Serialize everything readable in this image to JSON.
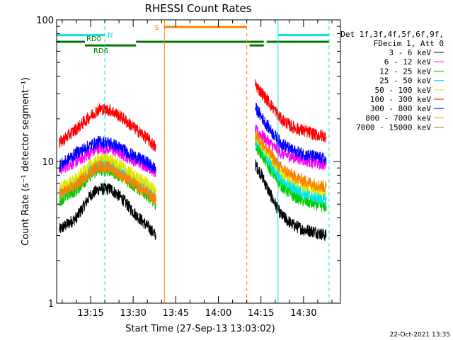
{
  "chart_data": {
    "type": "line",
    "title": "RHESSI Count Rates",
    "xlabel": "Start Time (27-Sep-13 13:03:02)",
    "ylabel": "Count Rate (s⁻¹ detector segment⁻¹)",
    "yscale": "log",
    "ylim": [
      1,
      100
    ],
    "xlim": [
      "13:03:02",
      "14:43:00"
    ],
    "x_ticks": [
      "13:15",
      "13:30",
      "13:45",
      "14:00",
      "14:15",
      "14:30"
    ],
    "y_ticks": [
      "1",
      "10",
      "100"
    ],
    "legend_header": [
      "Det 1f,3f,4f,5f,6f,9f,",
      "FDecim 1, Att 0"
    ],
    "legend_position": "right",
    "footer_date": "22-Oct-2021 13:35",
    "series": [
      {
        "name": "3 - 6 keV",
        "color": "#000000",
        "points": [
          [
            "13:04",
            3.3
          ],
          [
            "13:10",
            4.0
          ],
          [
            "13:15",
            5.8
          ],
          [
            "13:18",
            6.4
          ],
          [
            "13:22",
            6.4
          ],
          [
            "13:26",
            5.5
          ],
          [
            "13:30",
            4.4
          ],
          [
            "13:35",
            3.5
          ],
          [
            "13:38",
            3.0
          ],
          [
            "14:13",
            9.5
          ],
          [
            "14:15",
            8.2
          ],
          [
            "14:18",
            6.0
          ],
          [
            "14:22",
            4.2
          ],
          [
            "14:26",
            3.6
          ],
          [
            "14:30",
            3.3
          ],
          [
            "14:34",
            3.2
          ],
          [
            "14:38",
            3.0
          ]
        ]
      },
      {
        "name": "6 - 12 keV",
        "color": "#ff00ff",
        "points": [
          [
            "13:04",
            8.8
          ],
          [
            "13:10",
            10.0
          ],
          [
            "13:15",
            11.5
          ],
          [
            "13:18",
            12.5
          ],
          [
            "13:22",
            12.3
          ],
          [
            "13:26",
            11.3
          ],
          [
            "13:30",
            10.3
          ],
          [
            "13:35",
            9.3
          ],
          [
            "13:38",
            8.3
          ],
          [
            "14:13",
            16.5
          ],
          [
            "14:15",
            15.5
          ],
          [
            "14:18",
            13.5
          ],
          [
            "14:22",
            11.5
          ],
          [
            "14:26",
            10.8
          ],
          [
            "14:30",
            10.3
          ],
          [
            "14:34",
            9.8
          ],
          [
            "14:38",
            9.5
          ]
        ]
      },
      {
        "name": "12 - 25 keV",
        "color": "#00cc00",
        "points": [
          [
            "13:04",
            5.3
          ],
          [
            "13:10",
            6.3
          ],
          [
            "13:15",
            8.0
          ],
          [
            "13:18",
            8.8
          ],
          [
            "13:22",
            8.6
          ],
          [
            "13:26",
            7.8
          ],
          [
            "13:30",
            6.8
          ],
          [
            "13:35",
            5.8
          ],
          [
            "13:38",
            5.0
          ],
          [
            "14:13",
            13.0
          ],
          [
            "14:15",
            11.5
          ],
          [
            "14:18",
            9.0
          ],
          [
            "14:22",
            6.8
          ],
          [
            "14:26",
            5.8
          ],
          [
            "14:30",
            5.3
          ],
          [
            "14:34",
            5.0
          ],
          [
            "14:38",
            4.8
          ]
        ]
      },
      {
        "name": "25 - 50 keV",
        "color": "#00e5e5",
        "points": [
          [
            "13:04",
            6.0
          ],
          [
            "13:10",
            7.0
          ],
          [
            "13:15",
            8.8
          ],
          [
            "13:18",
            9.8
          ],
          [
            "13:22",
            9.5
          ],
          [
            "13:26",
            8.5
          ],
          [
            "13:30",
            7.5
          ],
          [
            "13:35",
            6.5
          ],
          [
            "13:38",
            5.6
          ],
          [
            "14:13",
            14.0
          ],
          [
            "14:15",
            12.5
          ],
          [
            "14:18",
            10.0
          ],
          [
            "14:22",
            7.6
          ],
          [
            "14:26",
            6.6
          ],
          [
            "14:30",
            6.0
          ],
          [
            "14:34",
            5.6
          ],
          [
            "14:38",
            5.3
          ]
        ]
      },
      {
        "name": "50 - 100 keV",
        "color": "#e5e500",
        "points": [
          [
            "13:04",
            6.5
          ],
          [
            "13:10",
            7.5
          ],
          [
            "13:15",
            9.5
          ],
          [
            "13:18",
            10.5
          ],
          [
            "13:22",
            10.3
          ],
          [
            "13:26",
            9.3
          ],
          [
            "13:30",
            8.0
          ],
          [
            "13:35",
            7.0
          ],
          [
            "13:38",
            6.2
          ],
          [
            "14:13",
            15.0
          ],
          [
            "14:15",
            13.5
          ],
          [
            "14:18",
            11.0
          ],
          [
            "14:22",
            8.5
          ],
          [
            "14:26",
            7.5
          ],
          [
            "14:30",
            6.8
          ],
          [
            "14:34",
            6.5
          ],
          [
            "14:38",
            6.2
          ]
        ]
      },
      {
        "name": "100 - 300 keV",
        "color": "#ff0000",
        "points": [
          [
            "13:04",
            13.5
          ],
          [
            "13:10",
            17.0
          ],
          [
            "13:15",
            21.0
          ],
          [
            "13:18",
            23.5
          ],
          [
            "13:22",
            23.0
          ],
          [
            "13:26",
            20.5
          ],
          [
            "13:30",
            17.5
          ],
          [
            "13:35",
            14.5
          ],
          [
            "13:38",
            12.5
          ],
          [
            "14:13",
            35.0
          ],
          [
            "14:15",
            31.0
          ],
          [
            "14:18",
            26.0
          ],
          [
            "14:22",
            20.0
          ],
          [
            "14:26",
            17.5
          ],
          [
            "14:30",
            16.5
          ],
          [
            "14:34",
            15.5
          ],
          [
            "14:38",
            15.0
          ]
        ]
      },
      {
        "name": "300 - 800 keV",
        "color": "#0000ff",
        "points": [
          [
            "13:04",
            9.3
          ],
          [
            "13:10",
            11.5
          ],
          [
            "13:15",
            13.0
          ],
          [
            "13:18",
            13.8
          ],
          [
            "13:22",
            13.5
          ],
          [
            "13:26",
            12.3
          ],
          [
            "13:30",
            11.0
          ],
          [
            "13:35",
            9.8
          ],
          [
            "13:38",
            8.8
          ],
          [
            "14:13",
            24.0
          ],
          [
            "14:15",
            21.0
          ],
          [
            "14:18",
            17.0
          ],
          [
            "14:22",
            13.5
          ],
          [
            "14:26",
            12.0
          ],
          [
            "14:30",
            11.3
          ],
          [
            "14:34",
            10.8
          ],
          [
            "14:38",
            10.3
          ]
        ]
      },
      {
        "name": "800 - 7000 keV",
        "color": "#ff8000",
        "points": [
          [
            "13:04",
            5.8
          ],
          [
            "13:10",
            6.8
          ],
          [
            "13:15",
            8.5
          ],
          [
            "13:18",
            9.3
          ],
          [
            "13:22",
            9.0
          ],
          [
            "13:26",
            8.0
          ],
          [
            "13:30",
            7.0
          ],
          [
            "13:35",
            6.0
          ],
          [
            "13:38",
            5.3
          ],
          [
            "14:13",
            15.5
          ],
          [
            "14:15",
            14.0
          ],
          [
            "14:18",
            11.5
          ],
          [
            "14:22",
            9.0
          ],
          [
            "14:26",
            8.0
          ],
          [
            "14:30",
            7.3
          ],
          [
            "14:34",
            6.9
          ],
          [
            "14:38",
            6.6
          ]
        ]
      },
      {
        "name": "7000 - 15000 keV",
        "color": "#997a00",
        "points": []
      }
    ],
    "vertical_lines": [
      {
        "x": "13:03:02",
        "color": "#00e5e5",
        "style": "solid"
      },
      {
        "x": "13:20",
        "color": "#00e5e5",
        "style": "dashed"
      },
      {
        "x": "13:41",
        "color": "#ff8000",
        "style": "solid"
      },
      {
        "x": "14:10",
        "color": "#ff8000",
        "style": "dashed"
      },
      {
        "x": "14:21",
        "color": "#00e5e5",
        "style": "solid"
      },
      {
        "x": "14:39",
        "color": "#00e5e5",
        "style": "dashed"
      }
    ],
    "annotation_bars": [
      {
        "label": "N",
        "color": "#00e5e5",
        "y": 78,
        "segments": [
          [
            "13:03:02",
            "13:20"
          ],
          [
            "14:21",
            "14:39"
          ]
        ]
      },
      {
        "label": "S",
        "color": "#ff8000",
        "y": 89,
        "segments": [
          [
            "13:41",
            "14:10"
          ]
        ]
      },
      {
        "label": "RD0",
        "color": "#007700",
        "y": 70,
        "segments": [
          [
            "13:03:02",
            "13:13"
          ]
        ]
      },
      {
        "label": "RD6",
        "color": "#007700",
        "y": 66,
        "segments": [
          [
            "13:13",
            "13:31"
          ]
        ]
      },
      {
        "label": "",
        "color": "#007700",
        "y": 70,
        "segments": [
          [
            "13:31",
            "14:11"
          ],
          [
            "14:11",
            "14:16"
          ],
          [
            "14:17",
            "14:39"
          ]
        ]
      },
      {
        "label": "",
        "color": "#007700",
        "y": 66,
        "segments": [
          [
            "14:11",
            "14:16"
          ]
        ]
      }
    ]
  }
}
